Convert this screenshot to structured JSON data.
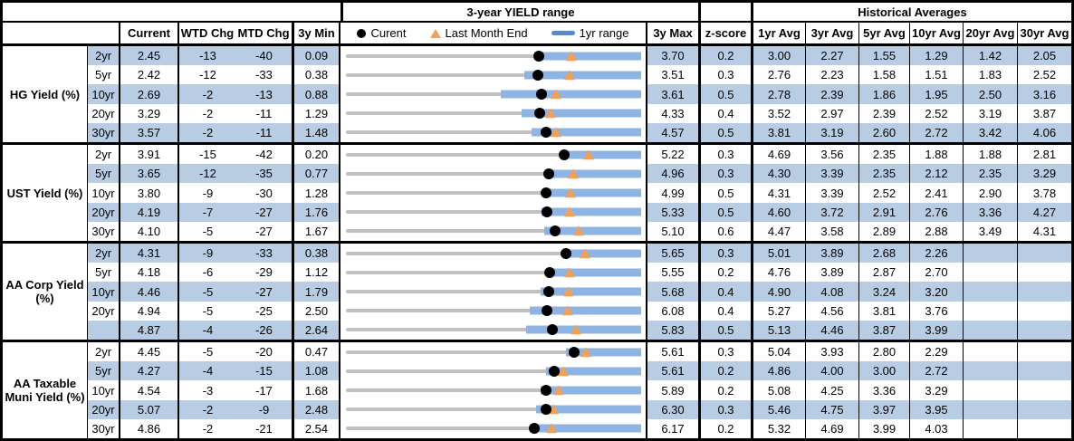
{
  "header": {
    "range_title": "3-year YIELD range",
    "hist_title": "Historical Averages",
    "cols": {
      "current": "Current",
      "wtd": "WTD Chg",
      "mtd": "MTD Chg",
      "min": "3y Min",
      "max": "3y Max",
      "z": "z-score"
    },
    "avg_cols": [
      "1yr Avg",
      "3yr Avg",
      "5yr Avg",
      "10yr Avg",
      "20yr Avg",
      "30yr Avg"
    ],
    "legend": {
      "current": "Curent",
      "last_month_end": "Last Month End",
      "range_1yr": "1yr range"
    }
  },
  "colors": {
    "stripe_blue": "#b8cce4",
    "bar_blue": "#8eb4e3",
    "legend_dash_blue": "#5b8ac5",
    "track_gray": "#c1c1c1",
    "marker_orange": "#f49f52",
    "marker_black": "#000000",
    "border_black": "#000000"
  },
  "chart_data": {
    "type": "table",
    "title": "3-year YIELD range",
    "columns": [
      "Current",
      "WTD Chg",
      "MTD Chg",
      "3y Min",
      "3-year YIELD range chart",
      "3y Max",
      "z-score",
      "1yr Avg",
      "3yr Avg",
      "5yr Avg",
      "10yr Avg",
      "20yr Avg",
      "30yr Avg"
    ],
    "chart_legend": [
      "Curent (black dot)",
      "Last Month End (orange triangle)",
      "1yr range (blue bar)"
    ],
    "groups": [
      {
        "label": "HG Yield (%)",
        "rows": [
          {
            "tenor": "2yr",
            "current": "2.45",
            "wtd_chg": "-13",
            "mtd_chg": "-40",
            "min_3y": "0.09",
            "max_3y": "3.70",
            "z_score": "0.2",
            "avgs": [
              "3.00",
              "2.27",
              "1.55",
              "1.29",
              "1.42",
              "2.05"
            ],
            "range_chart": {
              "min": 0.09,
              "max": 3.7,
              "bar_lo": 2.39,
              "bar_hi": 3.7,
              "current": 2.45,
              "last_month_end": 2.85
            }
          },
          {
            "tenor": "5yr",
            "current": "2.42",
            "wtd_chg": "-12",
            "mtd_chg": "-33",
            "min_3y": "0.38",
            "max_3y": "3.51",
            "z_score": "0.3",
            "avgs": [
              "2.76",
              "2.23",
              "1.58",
              "1.51",
              "1.83",
              "2.52"
            ],
            "range_chart": {
              "min": 0.38,
              "max": 3.51,
              "bar_lo": 2.27,
              "bar_hi": 3.51,
              "current": 2.42,
              "last_month_end": 2.75
            }
          },
          {
            "tenor": "10yr",
            "current": "2.69",
            "wtd_chg": "-2",
            "mtd_chg": "-13",
            "min_3y": "0.88",
            "max_3y": "3.61",
            "z_score": "0.5",
            "avgs": [
              "2.78",
              "2.39",
              "1.86",
              "1.95",
              "2.50",
              "3.16"
            ],
            "range_chart": {
              "min": 0.88,
              "max": 3.61,
              "bar_lo": 2.31,
              "bar_hi": 3.61,
              "current": 2.69,
              "last_month_end": 2.82
            }
          },
          {
            "tenor": "20yr",
            "current": "3.29",
            "wtd_chg": "-2",
            "mtd_chg": "-11",
            "min_3y": "1.29",
            "max_3y": "4.33",
            "z_score": "0.4",
            "avgs": [
              "3.52",
              "2.97",
              "2.39",
              "2.52",
              "3.19",
              "3.87"
            ],
            "range_chart": {
              "min": 1.29,
              "max": 4.33,
              "bar_lo": 3.1,
              "bar_hi": 4.33,
              "current": 3.29,
              "last_month_end": 3.4
            }
          },
          {
            "tenor": "30yr",
            "current": "3.57",
            "wtd_chg": "-2",
            "mtd_chg": "-11",
            "min_3y": "1.48",
            "max_3y": "4.57",
            "z_score": "0.5",
            "avgs": [
              "3.81",
              "3.19",
              "2.60",
              "2.72",
              "3.42",
              "4.06"
            ],
            "range_chart": {
              "min": 1.48,
              "max": 4.57,
              "bar_lo": 3.42,
              "bar_hi": 4.57,
              "current": 3.57,
              "last_month_end": 3.68
            }
          }
        ]
      },
      {
        "label": "UST Yield (%)",
        "rows": [
          {
            "tenor": "2yr",
            "current": "3.91",
            "wtd_chg": "-15",
            "mtd_chg": "-42",
            "min_3y": "0.20",
            "max_3y": "5.22",
            "z_score": "0.3",
            "avgs": [
              "4.69",
              "3.56",
              "2.35",
              "1.88",
              "1.88",
              "2.81"
            ],
            "range_chart": {
              "min": 0.2,
              "max": 5.22,
              "bar_lo": 3.89,
              "bar_hi": 5.22,
              "current": 3.91,
              "last_month_end": 4.33
            }
          },
          {
            "tenor": "5yr",
            "current": "3.65",
            "wtd_chg": "-12",
            "mtd_chg": "-35",
            "min_3y": "0.77",
            "max_3y": "4.96",
            "z_score": "0.3",
            "avgs": [
              "4.30",
              "3.39",
              "2.35",
              "2.12",
              "2.35",
              "3.29"
            ],
            "range_chart": {
              "min": 0.77,
              "max": 4.96,
              "bar_lo": 3.62,
              "bar_hi": 4.96,
              "current": 3.65,
              "last_month_end": 4.0
            }
          },
          {
            "tenor": "10yr",
            "current": "3.80",
            "wtd_chg": "-9",
            "mtd_chg": "-30",
            "min_3y": "1.28",
            "max_3y": "4.99",
            "z_score": "0.5",
            "avgs": [
              "4.31",
              "3.39",
              "2.52",
              "2.41",
              "2.90",
              "3.78"
            ],
            "range_chart": {
              "min": 1.28,
              "max": 4.99,
              "bar_lo": 3.78,
              "bar_hi": 4.99,
              "current": 3.8,
              "last_month_end": 4.1
            }
          },
          {
            "tenor": "20yr",
            "current": "4.19",
            "wtd_chg": "-7",
            "mtd_chg": "-27",
            "min_3y": "1.76",
            "max_3y": "5.33",
            "z_score": "0.5",
            "avgs": [
              "4.60",
              "3.72",
              "2.91",
              "2.76",
              "3.36",
              "4.27"
            ],
            "range_chart": {
              "min": 1.76,
              "max": 5.33,
              "bar_lo": 4.12,
              "bar_hi": 5.33,
              "current": 4.19,
              "last_month_end": 4.46
            }
          },
          {
            "tenor": "30yr",
            "current": "4.10",
            "wtd_chg": "-5",
            "mtd_chg": "-27",
            "min_3y": "1.67",
            "max_3y": "5.10",
            "z_score": "0.6",
            "avgs": [
              "4.47",
              "3.58",
              "2.89",
              "2.88",
              "3.49",
              "4.31"
            ],
            "range_chart": {
              "min": 1.67,
              "max": 5.1,
              "bar_lo": 3.97,
              "bar_hi": 5.1,
              "current": 4.1,
              "last_month_end": 4.37
            }
          }
        ]
      },
      {
        "label": "AA Corp Yield (%)",
        "rows": [
          {
            "tenor": "2yr",
            "current": "4.31",
            "wtd_chg": "-9",
            "mtd_chg": "-33",
            "min_3y": "0.38",
            "max_3y": "5.65",
            "z_score": "0.3",
            "avgs": [
              "5.01",
              "3.89",
              "2.68",
              "2.26",
              "",
              ""
            ],
            "range_chart": {
              "min": 0.38,
              "max": 5.65,
              "bar_lo": 4.28,
              "bar_hi": 5.65,
              "current": 4.31,
              "last_month_end": 4.64
            }
          },
          {
            "tenor": "5yr",
            "current": "4.18",
            "wtd_chg": "-6",
            "mtd_chg": "-29",
            "min_3y": "1.12",
            "max_3y": "5.55",
            "z_score": "0.2",
            "avgs": [
              "4.76",
              "3.89",
              "2.87",
              "2.70",
              "",
              ""
            ],
            "range_chart": {
              "min": 1.12,
              "max": 5.55,
              "bar_lo": 4.13,
              "bar_hi": 5.55,
              "current": 4.18,
              "last_month_end": 4.47
            }
          },
          {
            "tenor": "10yr",
            "current": "4.46",
            "wtd_chg": "-5",
            "mtd_chg": "-27",
            "min_3y": "1.79",
            "max_3y": "5.68",
            "z_score": "0.4",
            "avgs": [
              "4.90",
              "4.08",
              "3.24",
              "3.20",
              "",
              ""
            ],
            "range_chart": {
              "min": 1.79,
              "max": 5.68,
              "bar_lo": 4.35,
              "bar_hi": 5.68,
              "current": 4.46,
              "last_month_end": 4.73
            }
          },
          {
            "tenor": "20yr",
            "current": "4.94",
            "wtd_chg": "-5",
            "mtd_chg": "-25",
            "min_3y": "2.50",
            "max_3y": "6.08",
            "z_score": "0.4",
            "avgs": [
              "5.27",
              "4.56",
              "3.81",
              "3.76",
              "",
              ""
            ],
            "range_chart": {
              "min": 2.5,
              "max": 6.08,
              "bar_lo": 4.73,
              "bar_hi": 6.08,
              "current": 4.94,
              "last_month_end": 5.19
            }
          },
          {
            "tenor": "",
            "current": "4.87",
            "wtd_chg": "-4",
            "mtd_chg": "-26",
            "min_3y": "2.64",
            "max_3y": "5.83",
            "z_score": "0.5",
            "avgs": [
              "5.13",
              "4.46",
              "3.87",
              "3.99",
              "",
              ""
            ],
            "range_chart": {
              "min": 2.64,
              "max": 5.83,
              "bar_lo": 4.59,
              "bar_hi": 5.83,
              "current": 4.87,
              "last_month_end": 5.13
            }
          }
        ]
      },
      {
        "label": "AA Taxable Muni Yield (%)",
        "rows": [
          {
            "tenor": "2yr",
            "current": "4.45",
            "wtd_chg": "-5",
            "mtd_chg": "-20",
            "min_3y": "0.47",
            "max_3y": "5.61",
            "z_score": "0.3",
            "avgs": [
              "5.04",
              "3.93",
              "2.80",
              "2.29",
              "",
              ""
            ],
            "range_chart": {
              "min": 0.47,
              "max": 5.61,
              "bar_lo": 4.3,
              "bar_hi": 5.61,
              "current": 4.45,
              "last_month_end": 4.65
            }
          },
          {
            "tenor": "5yr",
            "current": "4.27",
            "wtd_chg": "-4",
            "mtd_chg": "-15",
            "min_3y": "1.08",
            "max_3y": "5.61",
            "z_score": "0.2",
            "avgs": [
              "4.86",
              "4.00",
              "3.00",
              "2.72",
              "",
              ""
            ],
            "range_chart": {
              "min": 1.08,
              "max": 5.61,
              "bar_lo": 4.15,
              "bar_hi": 5.61,
              "current": 4.27,
              "last_month_end": 4.42
            }
          },
          {
            "tenor": "10yr",
            "current": "4.54",
            "wtd_chg": "-3",
            "mtd_chg": "-17",
            "min_3y": "1.68",
            "max_3y": "5.89",
            "z_score": "0.2",
            "avgs": [
              "5.08",
              "4.25",
              "3.36",
              "3.29",
              "",
              ""
            ],
            "range_chart": {
              "min": 1.68,
              "max": 5.89,
              "bar_lo": 4.45,
              "bar_hi": 5.89,
              "current": 4.54,
              "last_month_end": 4.71
            }
          },
          {
            "tenor": "20yr",
            "current": "5.07",
            "wtd_chg": "-2",
            "mtd_chg": "-9",
            "min_3y": "2.48",
            "max_3y": "6.30",
            "z_score": "0.3",
            "avgs": [
              "5.46",
              "4.75",
              "3.97",
              "3.95",
              "",
              ""
            ],
            "range_chart": {
              "min": 2.48,
              "max": 6.3,
              "bar_lo": 4.94,
              "bar_hi": 6.3,
              "current": 5.07,
              "last_month_end": 5.16
            }
          },
          {
            "tenor": "30yr",
            "current": "4.86",
            "wtd_chg": "-2",
            "mtd_chg": "-21",
            "min_3y": "2.54",
            "max_3y": "6.17",
            "z_score": "0.2",
            "avgs": [
              "5.32",
              "4.69",
              "3.99",
              "4.03",
              "",
              ""
            ],
            "range_chart": {
              "min": 2.54,
              "max": 6.17,
              "bar_lo": 4.8,
              "bar_hi": 6.17,
              "current": 4.86,
              "last_month_end": 5.07
            }
          }
        ]
      }
    ]
  }
}
